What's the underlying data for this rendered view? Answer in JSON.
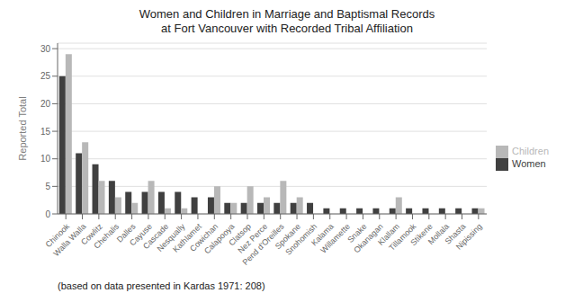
{
  "chart_data": {
    "type": "bar",
    "title": "Women and Children in Marriage and Baptismal Records\nat Fort Vancouver with Recorded Tribal Affiliation",
    "y_label": "Reported Total",
    "annotations": [
      "(based on data presented in Kardas 1971: 208)"
    ],
    "categories": [
      "Chinook",
      "Walla Walla",
      "Cowlitz",
      "Chehalis",
      "Dalles",
      "Cayuse",
      "Cascade",
      "Nesqually",
      "Kathlamet",
      "Cowichan",
      "Calapooya",
      "Clatsop",
      "Nez Perce",
      "Pend d'Oreilles",
      "Spokane",
      "Snohomish",
      "Kalama",
      "Willamette",
      "Snake",
      "Okanagan",
      "Klallam",
      "Tillamook",
      "Stikene",
      "Mollala",
      "Shasta",
      "Nipissing"
    ],
    "series": [
      {
        "name": "Women",
        "color": "#404040",
        "values": [
          25,
          11,
          9,
          6,
          4,
          4,
          4,
          4,
          3,
          3,
          2,
          2,
          2,
          2,
          2,
          2,
          1,
          1,
          1,
          1,
          1,
          1,
          1,
          1,
          1,
          1
        ]
      },
      {
        "name": "Children",
        "color": "#b8b8b8",
        "values": [
          29,
          13,
          6,
          3,
          2,
          6,
          1,
          1,
          0,
          5,
          2,
          5,
          3,
          6,
          3,
          0,
          0,
          0,
          0,
          0,
          3,
          0,
          0,
          0,
          0,
          1
        ]
      }
    ],
    "ylim": [
      0,
      31
    ],
    "yticks": [
      0,
      5,
      10,
      15,
      20,
      25,
      30
    ],
    "grid": true,
    "legend": "right"
  }
}
